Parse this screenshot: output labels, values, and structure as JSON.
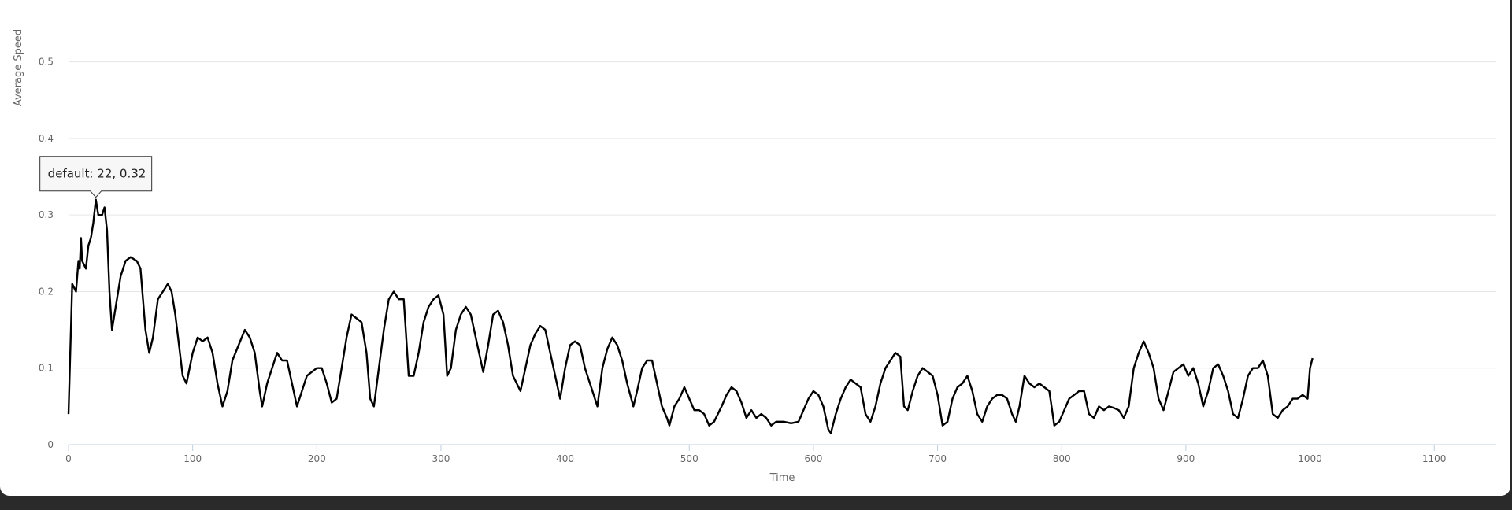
{
  "chart_data": {
    "type": "line",
    "title": "",
    "xlabel": "Time",
    "ylabel": "Average Speed",
    "xlim": [
      0,
      1150
    ],
    "ylim": [
      0,
      0.55
    ],
    "x_ticks": [
      0,
      100,
      200,
      300,
      400,
      500,
      600,
      700,
      800,
      900,
      1000,
      1100
    ],
    "y_ticks": [
      0,
      0.1,
      0.2,
      0.3,
      0.4,
      0.5
    ],
    "grid": true,
    "series": [
      {
        "name": "default",
        "color": "#000000",
        "points": [
          [
            0,
            0.04
          ],
          [
            3,
            0.21
          ],
          [
            6,
            0.2
          ],
          [
            8,
            0.24
          ],
          [
            9,
            0.23
          ],
          [
            10,
            0.27
          ],
          [
            11,
            0.24
          ],
          [
            14,
            0.23
          ],
          [
            16,
            0.26
          ],
          [
            18,
            0.27
          ],
          [
            20,
            0.29
          ],
          [
            22,
            0.32
          ],
          [
            24,
            0.3
          ],
          [
            27,
            0.3
          ],
          [
            29,
            0.31
          ],
          [
            31,
            0.28
          ],
          [
            33,
            0.2
          ],
          [
            35,
            0.15
          ],
          [
            38,
            0.18
          ],
          [
            42,
            0.22
          ],
          [
            46,
            0.24
          ],
          [
            50,
            0.245
          ],
          [
            55,
            0.24
          ],
          [
            58,
            0.23
          ],
          [
            62,
            0.15
          ],
          [
            65,
            0.12
          ],
          [
            68,
            0.14
          ],
          [
            72,
            0.19
          ],
          [
            76,
            0.2
          ],
          [
            80,
            0.21
          ],
          [
            83,
            0.2
          ],
          [
            86,
            0.17
          ],
          [
            89,
            0.13
          ],
          [
            92,
            0.09
          ],
          [
            95,
            0.08
          ],
          [
            100,
            0.12
          ],
          [
            104,
            0.14
          ],
          [
            108,
            0.135
          ],
          [
            112,
            0.14
          ],
          [
            116,
            0.12
          ],
          [
            120,
            0.08
          ],
          [
            124,
            0.05
          ],
          [
            128,
            0.07
          ],
          [
            132,
            0.11
          ],
          [
            137,
            0.13
          ],
          [
            142,
            0.15
          ],
          [
            146,
            0.14
          ],
          [
            150,
            0.12
          ],
          [
            154,
            0.07
          ],
          [
            156,
            0.05
          ],
          [
            160,
            0.08
          ],
          [
            164,
            0.1
          ],
          [
            168,
            0.12
          ],
          [
            172,
            0.11
          ],
          [
            176,
            0.11
          ],
          [
            180,
            0.08
          ],
          [
            184,
            0.05
          ],
          [
            188,
            0.07
          ],
          [
            192,
            0.09
          ],
          [
            196,
            0.095
          ],
          [
            200,
            0.1
          ],
          [
            204,
            0.1
          ],
          [
            208,
            0.08
          ],
          [
            212,
            0.055
          ],
          [
            216,
            0.06
          ],
          [
            220,
            0.1
          ],
          [
            224,
            0.14
          ],
          [
            228,
            0.17
          ],
          [
            232,
            0.165
          ],
          [
            236,
            0.16
          ],
          [
            240,
            0.12
          ],
          [
            243,
            0.06
          ],
          [
            246,
            0.05
          ],
          [
            250,
            0.1
          ],
          [
            254,
            0.15
          ],
          [
            258,
            0.19
          ],
          [
            262,
            0.2
          ],
          [
            266,
            0.19
          ],
          [
            270,
            0.19
          ],
          [
            274,
            0.09
          ],
          [
            278,
            0.09
          ],
          [
            282,
            0.12
          ],
          [
            286,
            0.16
          ],
          [
            290,
            0.18
          ],
          [
            294,
            0.19
          ],
          [
            298,
            0.195
          ],
          [
            302,
            0.17
          ],
          [
            305,
            0.09
          ],
          [
            308,
            0.1
          ],
          [
            312,
            0.15
          ],
          [
            316,
            0.17
          ],
          [
            320,
            0.18
          ],
          [
            324,
            0.17
          ],
          [
            328,
            0.14
          ],
          [
            334,
            0.095
          ],
          [
            338,
            0.13
          ],
          [
            342,
            0.17
          ],
          [
            346,
            0.175
          ],
          [
            350,
            0.16
          ],
          [
            354,
            0.13
          ],
          [
            358,
            0.09
          ],
          [
            364,
            0.07
          ],
          [
            368,
            0.1
          ],
          [
            372,
            0.13
          ],
          [
            376,
            0.145
          ],
          [
            380,
            0.155
          ],
          [
            384,
            0.15
          ],
          [
            388,
            0.12
          ],
          [
            392,
            0.09
          ],
          [
            396,
            0.06
          ],
          [
            400,
            0.1
          ],
          [
            404,
            0.13
          ],
          [
            408,
            0.135
          ],
          [
            412,
            0.13
          ],
          [
            416,
            0.1
          ],
          [
            422,
            0.07
          ],
          [
            426,
            0.05
          ],
          [
            430,
            0.1
          ],
          [
            434,
            0.125
          ],
          [
            438,
            0.14
          ],
          [
            442,
            0.13
          ],
          [
            446,
            0.11
          ],
          [
            450,
            0.08
          ],
          [
            455,
            0.05
          ],
          [
            458,
            0.07
          ],
          [
            462,
            0.1
          ],
          [
            466,
            0.11
          ],
          [
            470,
            0.11
          ],
          [
            474,
            0.08
          ],
          [
            478,
            0.05
          ],
          [
            482,
            0.035
          ],
          [
            484,
            0.025
          ],
          [
            488,
            0.05
          ],
          [
            492,
            0.06
          ],
          [
            496,
            0.075
          ],
          [
            500,
            0.06
          ],
          [
            504,
            0.045
          ],
          [
            508,
            0.045
          ],
          [
            512,
            0.04
          ],
          [
            516,
            0.025
          ],
          [
            520,
            0.03
          ],
          [
            526,
            0.05
          ],
          [
            530,
            0.065
          ],
          [
            534,
            0.075
          ],
          [
            538,
            0.07
          ],
          [
            542,
            0.055
          ],
          [
            546,
            0.035
          ],
          [
            550,
            0.045
          ],
          [
            554,
            0.035
          ],
          [
            558,
            0.04
          ],
          [
            562,
            0.035
          ],
          [
            566,
            0.025
          ],
          [
            570,
            0.03
          ],
          [
            576,
            0.03
          ],
          [
            582,
            0.028
          ],
          [
            588,
            0.03
          ],
          [
            592,
            0.045
          ],
          [
            596,
            0.06
          ],
          [
            600,
            0.07
          ],
          [
            604,
            0.065
          ],
          [
            608,
            0.05
          ],
          [
            612,
            0.02
          ],
          [
            614,
            0.015
          ],
          [
            618,
            0.04
          ],
          [
            622,
            0.06
          ],
          [
            626,
            0.075
          ],
          [
            630,
            0.085
          ],
          [
            634,
            0.08
          ],
          [
            638,
            0.075
          ],
          [
            642,
            0.04
          ],
          [
            646,
            0.03
          ],
          [
            650,
            0.05
          ],
          [
            654,
            0.08
          ],
          [
            658,
            0.1
          ],
          [
            662,
            0.11
          ],
          [
            666,
            0.12
          ],
          [
            670,
            0.115
          ],
          [
            673,
            0.05
          ],
          [
            676,
            0.045
          ],
          [
            680,
            0.07
          ],
          [
            684,
            0.09
          ],
          [
            688,
            0.1
          ],
          [
            692,
            0.095
          ],
          [
            696,
            0.09
          ],
          [
            700,
            0.065
          ],
          [
            704,
            0.025
          ],
          [
            708,
            0.03
          ],
          [
            712,
            0.06
          ],
          [
            716,
            0.075
          ],
          [
            720,
            0.08
          ],
          [
            724,
            0.09
          ],
          [
            728,
            0.07
          ],
          [
            732,
            0.04
          ],
          [
            736,
            0.03
          ],
          [
            740,
            0.05
          ],
          [
            744,
            0.06
          ],
          [
            748,
            0.065
          ],
          [
            752,
            0.065
          ],
          [
            756,
            0.06
          ],
          [
            760,
            0.04
          ],
          [
            763,
            0.03
          ],
          [
            766,
            0.05
          ],
          [
            770,
            0.09
          ],
          [
            774,
            0.08
          ],
          [
            778,
            0.075
          ],
          [
            782,
            0.08
          ],
          [
            786,
            0.075
          ],
          [
            790,
            0.07
          ],
          [
            794,
            0.025
          ],
          [
            798,
            0.03
          ],
          [
            802,
            0.045
          ],
          [
            806,
            0.06
          ],
          [
            810,
            0.065
          ],
          [
            814,
            0.07
          ],
          [
            818,
            0.07
          ],
          [
            822,
            0.04
          ],
          [
            826,
            0.035
          ],
          [
            830,
            0.05
          ],
          [
            834,
            0.045
          ],
          [
            838,
            0.05
          ],
          [
            842,
            0.048
          ],
          [
            846,
            0.045
          ],
          [
            850,
            0.035
          ],
          [
            854,
            0.05
          ],
          [
            858,
            0.1
          ],
          [
            862,
            0.12
          ],
          [
            866,
            0.135
          ],
          [
            870,
            0.12
          ],
          [
            874,
            0.1
          ],
          [
            878,
            0.06
          ],
          [
            882,
            0.045
          ],
          [
            886,
            0.07
          ],
          [
            890,
            0.095
          ],
          [
            894,
            0.1
          ],
          [
            898,
            0.105
          ],
          [
            902,
            0.09
          ],
          [
            906,
            0.1
          ],
          [
            910,
            0.08
          ],
          [
            914,
            0.05
          ],
          [
            918,
            0.07
          ],
          [
            922,
            0.1
          ],
          [
            926,
            0.105
          ],
          [
            930,
            0.09
          ],
          [
            934,
            0.07
          ],
          [
            938,
            0.04
          ],
          [
            942,
            0.035
          ],
          [
            946,
            0.06
          ],
          [
            950,
            0.09
          ],
          [
            954,
            0.1
          ],
          [
            958,
            0.1
          ],
          [
            962,
            0.11
          ],
          [
            966,
            0.09
          ],
          [
            970,
            0.04
          ],
          [
            974,
            0.035
          ],
          [
            978,
            0.045
          ],
          [
            982,
            0.05
          ],
          [
            986,
            0.06
          ],
          [
            990,
            0.06
          ],
          [
            994,
            0.065
          ],
          [
            998,
            0.06
          ],
          [
            1000,
            0.1
          ],
          [
            1002,
            0.113
          ]
        ]
      }
    ],
    "tooltip": {
      "text": "default: 22, 0.32",
      "x": 22,
      "y": 0.32
    }
  }
}
